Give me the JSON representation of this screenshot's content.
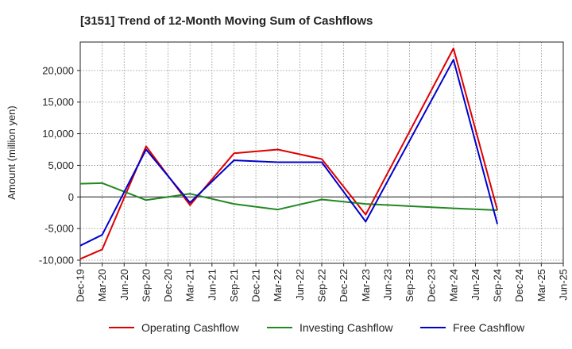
{
  "chart_data": {
    "type": "line",
    "title": "[3151]  Trend of 12-Month Moving Sum of Cashflows",
    "xlabel": "",
    "ylabel": "Amount (million yen)",
    "ylim": [
      -10500,
      24500
    ],
    "yticks": [
      -10000,
      -5000,
      0,
      5000,
      10000,
      15000,
      20000
    ],
    "ytick_labels": [
      "-10,000",
      "-5,000",
      "0",
      "5,000",
      "10,000",
      "15,000",
      "20,000"
    ],
    "categories": [
      "Dec-19",
      "Mar-20",
      "Jun-20",
      "Sep-20",
      "Dec-20",
      "Mar-21",
      "Jun-21",
      "Sep-21",
      "Dec-21",
      "Mar-22",
      "Jun-22",
      "Sep-22",
      "Dec-22",
      "Mar-23",
      "Jun-23",
      "Sep-23",
      "Dec-23",
      "Mar-24",
      "Jun-24",
      "Sep-24",
      "Dec-24",
      "Mar-25"
    ],
    "x_labels": [
      "Dec-19",
      "Mar-20",
      "Jun-20",
      "Sep-20",
      "Dec-20",
      "Mar-21",
      "Jun-21",
      "Sep-21",
      "Dec-21",
      "Mar-22",
      "Jun-22",
      "Sep-22",
      "Dec-22",
      "Mar-23",
      "Jun-23",
      "Sep-23",
      "Dec-23",
      "Mar-24",
      "Jun-24",
      "Sep-24",
      "Dec-24",
      "Mar-25",
      "Jun-25"
    ],
    "grid": true,
    "legend_position": "bottom",
    "series": [
      {
        "name": "Operating Cashflow",
        "color": "#dd0000",
        "values": [
          -9800,
          -8300,
          null,
          8000,
          null,
          -1300,
          null,
          6900,
          null,
          7500,
          null,
          6000,
          null,
          -2800,
          null,
          null,
          null,
          23500,
          null,
          -2100,
          null,
          null
        ]
      },
      {
        "name": "Investing Cashflow",
        "color": "#228822",
        "values": [
          2100,
          2200,
          null,
          -500,
          null,
          500,
          null,
          -1100,
          null,
          -2000,
          null,
          -400,
          null,
          -1100,
          null,
          null,
          null,
          -1800,
          null,
          -2100,
          null,
          null
        ]
      },
      {
        "name": "Free Cashflow",
        "color": "#0000cc",
        "values": [
          -7700,
          -6000,
          null,
          7500,
          null,
          -900,
          null,
          5800,
          null,
          5500,
          null,
          5500,
          null,
          -3900,
          null,
          null,
          null,
          21700,
          null,
          -4300,
          null,
          null
        ]
      }
    ]
  }
}
